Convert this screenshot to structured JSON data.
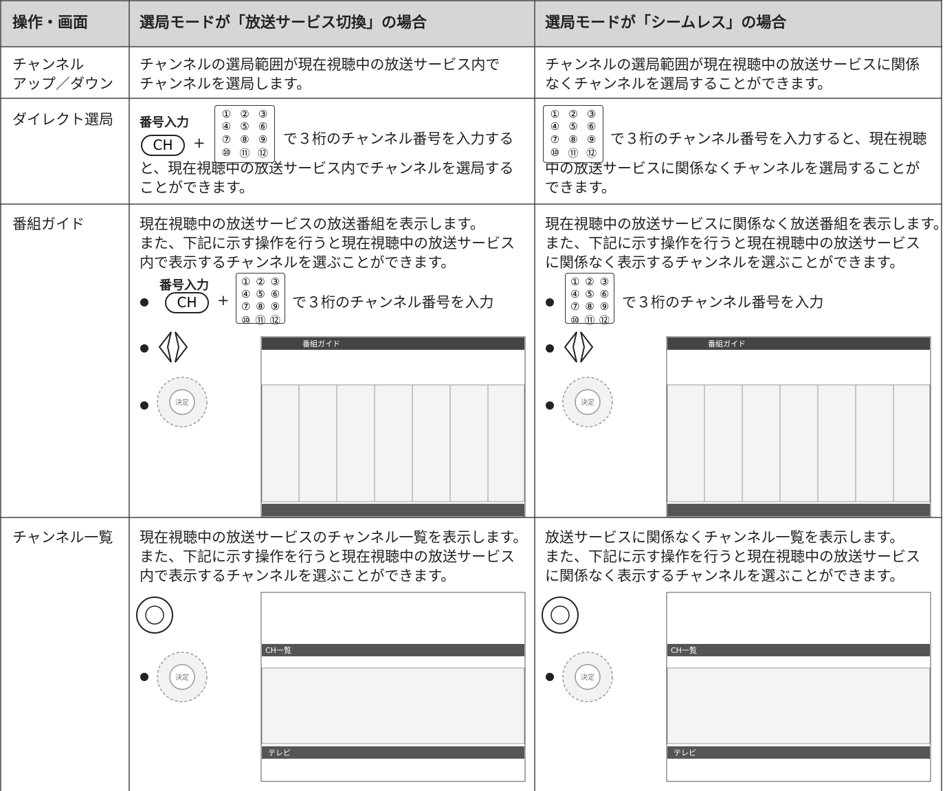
{
  "table": {
    "header": [
      "操作・画面",
      "選局モードが「放送サービス切換」の場合",
      "選局モードが「シームレス」の場合"
    ],
    "rows": [
      {
        "label": [
          "チャンネル",
          "アップ／ダウン"
        ],
        "mode_switch": {
          "lines": [
            "チャンネルの選局範囲が現在視聴中の放送サービス内で",
            "チャンネルを選局します。"
          ]
        },
        "seamless": {
          "lines": [
            "チャンネルの選局範囲が現在視聴中の放送サービスに関係",
            "なくチャンネルを選局することができます。"
          ]
        }
      },
      {
        "label": [
          "ダイレクト選局"
        ],
        "mode_switch": {
          "key_text": "で３桁のチャンネル番号を入力する",
          "lines": [
            "と、現在視聴中の放送サービス内でチャンネルを選局する",
            "ことができます。"
          ]
        },
        "seamless": {
          "key_text": "で３桁のチャンネル番号を入力すると、現在視聴",
          "lines": [
            "中の放送サービスに関係なくチャンネルを選局することが",
            "できます。"
          ]
        }
      },
      {
        "label": [
          "番組ガイド"
        ],
        "mode_switch": {
          "lines": [
            "現在視聴中の放送サービスの放送番組を表示します。",
            "また、下記に示す操作を行うと現在視聴中の放送サービス",
            "内で表示するチャンネルを選ぶことができます。"
          ],
          "key_text": "で３桁のチャンネル番号を入力"
        },
        "seamless": {
          "lines": [
            "現在視聴中の放送サービスに関係なく放送番組を表示します。",
            "また、下記に示す操作を行うと現在視聴中の放送サービス",
            "に関係なく表示するチャンネルを選ぶことができます。"
          ],
          "key_text": "で３桁のチャンネル番号を入力"
        }
      },
      {
        "label": [
          "チャンネル一覧"
        ],
        "mode_switch": {
          "lines": [
            "現在視聴中の放送サービスのチャンネル一覧を表示します。",
            "また、下記に示す操作を行うと現在視聴中の放送サービス",
            "内で表示するチャンネルを選ぶことができます。"
          ]
        },
        "seamless": {
          "lines": [
            "放送サービスに関係なくチャンネル一覧を表示します。",
            "また、下記に示す操作を行うと現在視聴中の放送サービス",
            "に関係なく表示するチャンネルを選ぶことができます。"
          ]
        }
      }
    ]
  },
  "keypad": {
    "caption": "番号入力",
    "ch": "CH",
    "plus": "+",
    "keys": [
      "①",
      "②",
      "③",
      "④",
      "⑤",
      "⑥",
      "⑦",
      "⑧",
      "⑨",
      "⑩",
      "⑪",
      "⑫"
    ]
  },
  "screens": {
    "guide_title": "番組ガイド",
    "list_title": "CH一覧",
    "tv": "テレビ",
    "enter": "決定"
  }
}
